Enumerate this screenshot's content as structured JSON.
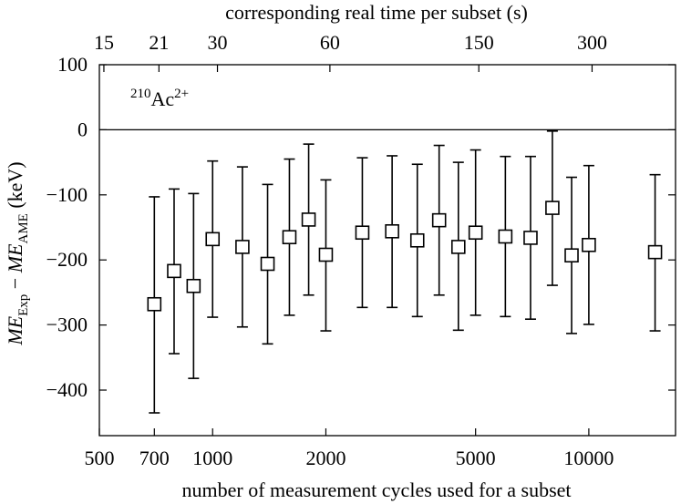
{
  "chart_data": {
    "type": "scatter",
    "title": "",
    "xlabel": "number of measurement cycles used for a subset",
    "ylabel_parts": [
      {
        "text": "ME",
        "style": "italic"
      },
      {
        "text": "Exp",
        "style": "sub"
      },
      {
        "text": " − ",
        "style": "normal"
      },
      {
        "text": "ME",
        "style": "italic"
      },
      {
        "text": "AME",
        "style": "sub"
      },
      {
        "text": " (keV)",
        "style": "normal"
      }
    ],
    "x2label": "corresponding real time per subset (s)",
    "annotation": {
      "mass_number": "210",
      "element": "Ac",
      "charge": "2+"
    },
    "x_scale": "log",
    "xlim": [
      500,
      17000
    ],
    "ylim": [
      -470,
      100
    ],
    "x_ticks": [
      {
        "value": 500,
        "label": "500"
      },
      {
        "value": 700,
        "label": "700"
      },
      {
        "value": 1000,
        "label": "1000"
      },
      {
        "value": 2000,
        "label": "2000"
      },
      {
        "value": 5000,
        "label": "5000"
      },
      {
        "value": 10000,
        "label": "10000"
      }
    ],
    "x2_ticks": [
      {
        "value": 514,
        "label": "15"
      },
      {
        "value": 720,
        "label": "21"
      },
      {
        "value": 1030,
        "label": "30"
      },
      {
        "value": 2050,
        "label": "60"
      },
      {
        "value": 5100,
        "label": "150"
      },
      {
        "value": 10200,
        "label": "300"
      }
    ],
    "y_ticks": [
      {
        "value": 100,
        "label": "100"
      },
      {
        "value": 0,
        "label": "0"
      },
      {
        "value": -100,
        "label": "−100"
      },
      {
        "value": -200,
        "label": "−200"
      },
      {
        "value": -300,
        "label": "−300"
      },
      {
        "value": -400,
        "label": "−400"
      }
    ],
    "zero_line": 0,
    "grid": false,
    "marker": "open-square",
    "points": [
      {
        "x": 700,
        "y": -268,
        "err_low": -435,
        "err_high": -103
      },
      {
        "x": 790,
        "y": -217,
        "err_low": -344,
        "err_high": -91
      },
      {
        "x": 890,
        "y": -240,
        "err_low": -382,
        "err_high": -98
      },
      {
        "x": 1000,
        "y": -168,
        "err_low": -288,
        "err_high": -48
      },
      {
        "x": 1200,
        "y": -180,
        "err_low": -303,
        "err_high": -57
      },
      {
        "x": 1400,
        "y": -206,
        "err_low": -329,
        "err_high": -84
      },
      {
        "x": 1600,
        "y": -165,
        "err_low": -285,
        "err_high": -45
      },
      {
        "x": 1800,
        "y": -138,
        "err_low": -254,
        "err_high": -22
      },
      {
        "x": 2000,
        "y": -192,
        "err_low": -309,
        "err_high": -77
      },
      {
        "x": 2500,
        "y": -158,
        "err_low": -273,
        "err_high": -43
      },
      {
        "x": 3000,
        "y": -156,
        "err_low": -273,
        "err_high": -40
      },
      {
        "x": 3500,
        "y": -170,
        "err_low": -287,
        "err_high": -53
      },
      {
        "x": 4000,
        "y": -139,
        "err_low": -254,
        "err_high": -24
      },
      {
        "x": 4500,
        "y": -180,
        "err_low": -308,
        "err_high": -50
      },
      {
        "x": 5000,
        "y": -158,
        "err_low": -285,
        "err_high": -31
      },
      {
        "x": 6000,
        "y": -164,
        "err_low": -287,
        "err_high": -41
      },
      {
        "x": 7000,
        "y": -166,
        "err_low": -291,
        "err_high": -41
      },
      {
        "x": 8000,
        "y": -120,
        "err_low": -239,
        "err_high": -2
      },
      {
        "x": 9000,
        "y": -193,
        "err_low": -313,
        "err_high": -73
      },
      {
        "x": 10000,
        "y": -177,
        "err_low": -299,
        "err_high": -55
      },
      {
        "x": 15000,
        "y": -188,
        "err_low": -309,
        "err_high": -69
      }
    ]
  }
}
